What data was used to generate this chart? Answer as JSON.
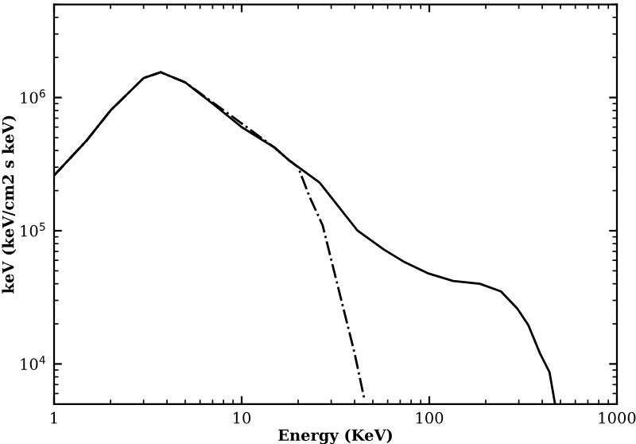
{
  "chart_data": {
    "type": "line",
    "xlabel": "Energy (KeV)",
    "ylabel": "keV (keV/cm2 s keV)",
    "log": "xy",
    "xlim": [
      1,
      1000
    ],
    "ylim": [
      5000,
      5000000
    ],
    "xticks": [
      1,
      10,
      100,
      1000
    ],
    "yticks": [
      {
        "value": 10000,
        "label": "10$^{4}$"
      },
      {
        "value": 100000,
        "label": "10$^{5}$"
      },
      {
        "value": 1000000,
        "label": "10$^{6}$"
      }
    ],
    "grid": false,
    "legend": false,
    "marker": "none",
    "series": [
      {
        "color": "#000000",
        "line_style": "solid",
        "x": [
          1,
          1.5,
          2,
          3,
          3.7,
          5,
          7,
          10,
          15,
          17.8,
          26,
          41.5,
          57.5,
          74,
          98,
          134,
          186,
          241,
          295,
          337,
          389,
          437,
          468
        ],
        "values": [
          260000,
          480000,
          800000,
          1400000,
          1550000,
          1300000,
          900000,
          600000,
          420000,
          340000,
          230000,
          100000,
          72000,
          58000,
          48000,
          42000,
          40000,
          35000,
          26000,
          19600,
          12000,
          8700,
          5000
        ]
      },
      {
        "color": "#000000",
        "line_style": "dashdot",
        "x": [
          1,
          1.5,
          2,
          3,
          3.7,
          5,
          7,
          10,
          15,
          17.8,
          20,
          23,
          27,
          34,
          40,
          45
        ],
        "values": [
          260000,
          480000,
          800000,
          1400000,
          1550000,
          1300000,
          920000,
          640000,
          420000,
          340000,
          300000,
          180000,
          110000,
          30000,
          12000,
          5500
        ]
      }
    ]
  }
}
